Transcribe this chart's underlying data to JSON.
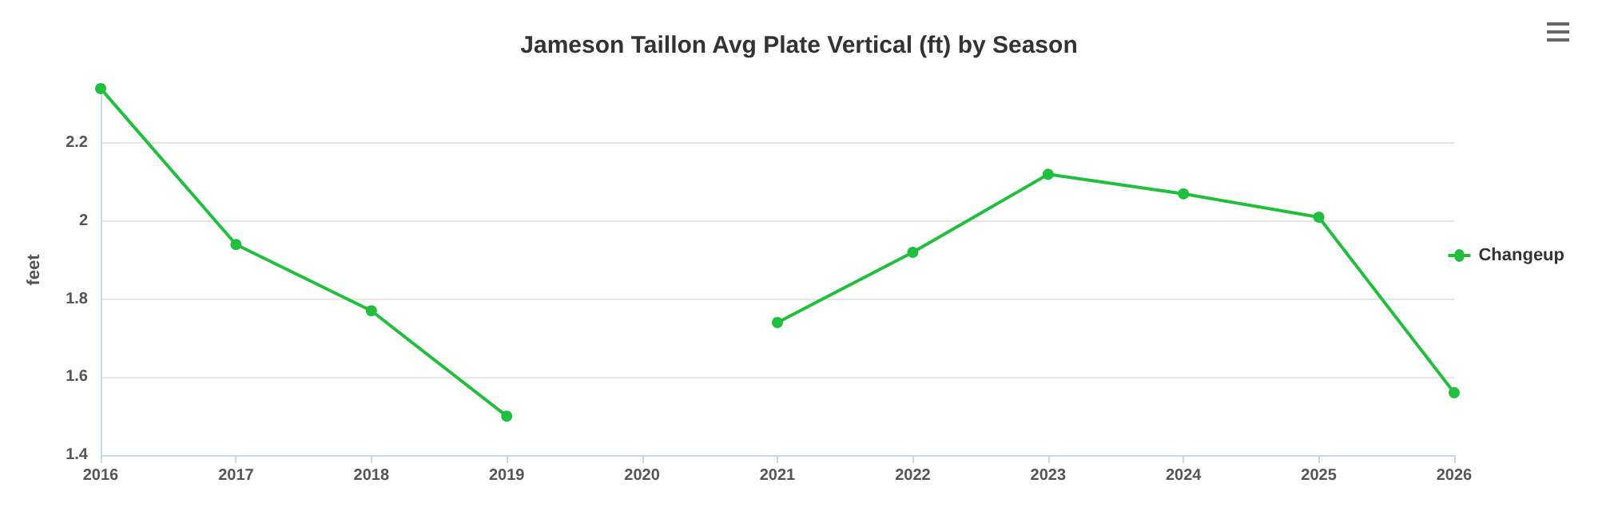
{
  "chart_data": {
    "type": "line",
    "title": "Jameson Taillon Avg Plate Vertical (ft) by Season",
    "ylabel": "feet",
    "categories": [
      "2016",
      "2017",
      "2018",
      "2019",
      "2020",
      "2021",
      "2022",
      "2023",
      "2024",
      "2025",
      "2026"
    ],
    "series": [
      {
        "name": "Changeup",
        "color": "#22bf3e",
        "values": [
          2.34,
          1.94,
          1.77,
          1.5,
          null,
          1.74,
          1.92,
          2.12,
          2.07,
          2.01,
          1.56
        ]
      }
    ],
    "ylim": [
      1.4,
      2.35
    ],
    "yticks": [
      1.4,
      1.6,
      1.8,
      2,
      2.2
    ],
    "grid": "y",
    "legend": "right",
    "marker": "circle",
    "line_style": "solid"
  }
}
